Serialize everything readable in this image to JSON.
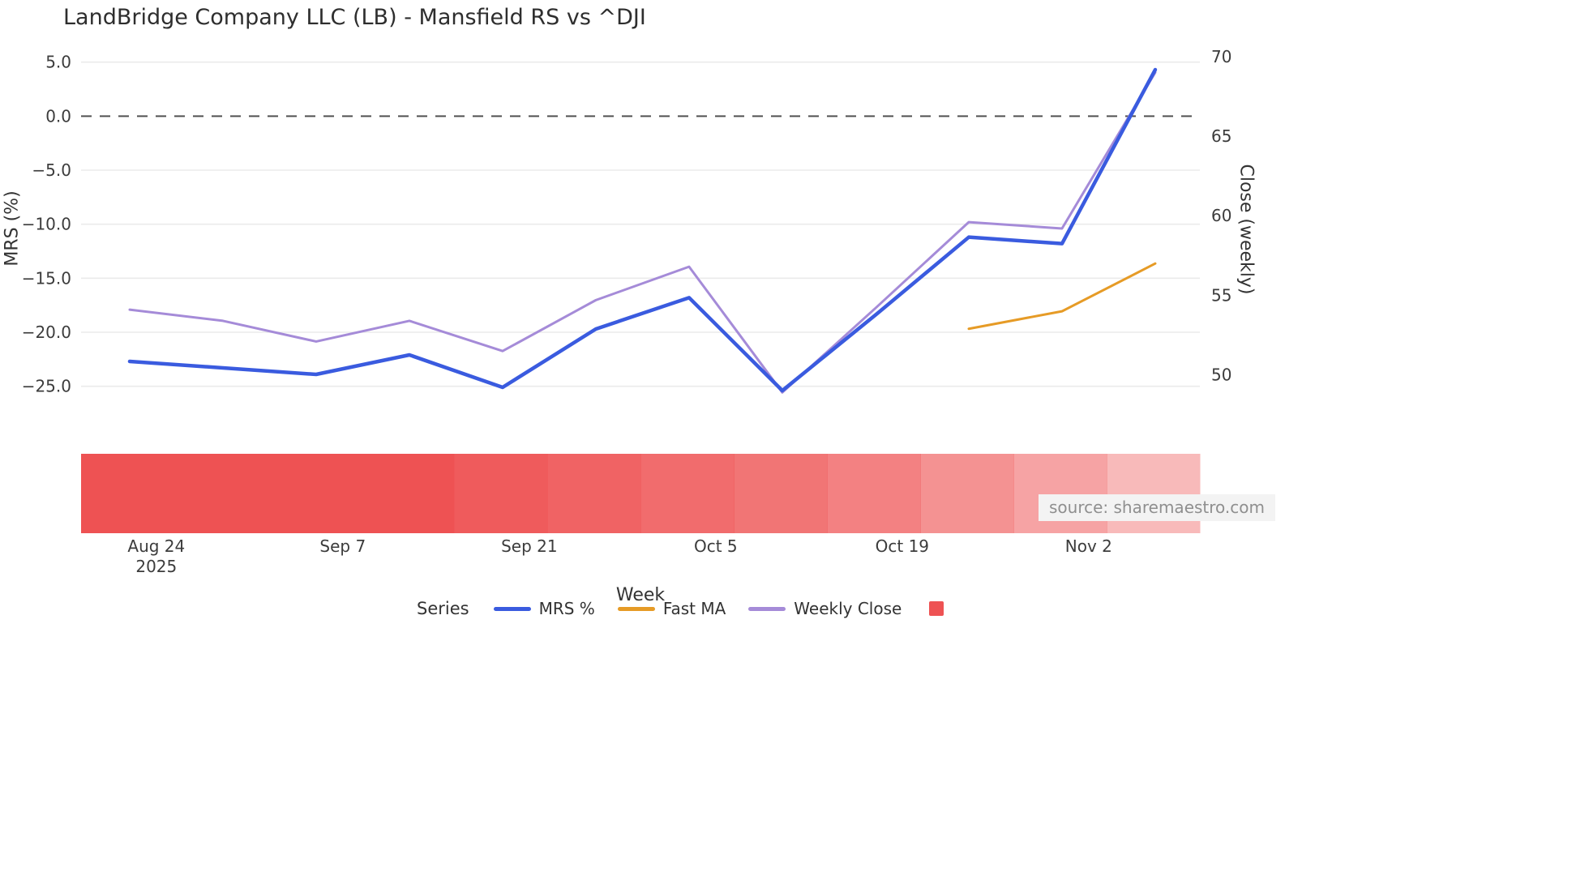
{
  "source_note": "source: sharemaestro.com",
  "legend": {
    "title": "Series",
    "items": [
      {
        "label": "MRS %",
        "color": "#3a5bdf",
        "swatch": "line"
      },
      {
        "label": "Fast MA",
        "color": "#e69b26",
        "swatch": "line"
      },
      {
        "label": "Weekly Close",
        "color": "#a58bd8",
        "swatch": "line"
      },
      {
        "label": "",
        "color": "#ee5253",
        "swatch": "square"
      }
    ]
  },
  "chart_data": {
    "type": "line",
    "title": "LandBridge Company LLC (LB) - Mansfield RS vs ^DJI",
    "xlabel": "Week",
    "ylabel_left": "MRS (%)",
    "ylabel_right": "Close (weekly)",
    "x_unit": "day offset, weekly points starting Aug 22 2025",
    "xlim": [
      -3.65,
      80.35
    ],
    "ylim_left": [
      -26.9,
      6.4
    ],
    "ylim_right": [
      48.0,
      70.6
    ],
    "grid": "horizontal at left-axis ticks, light gray",
    "zero_reference_line": {
      "value": 0,
      "axis": "left",
      "style": "dashed",
      "color": "#515151"
    },
    "left_ticks": [
      {
        "value": 5,
        "label": "5.0"
      },
      {
        "value": 0,
        "label": "0.0"
      },
      {
        "value": -5,
        "label": "−5.0"
      },
      {
        "value": -10,
        "label": "−10.0"
      },
      {
        "value": -15,
        "label": "−15.0"
      },
      {
        "value": -20,
        "label": "−20.0"
      },
      {
        "value": -25,
        "label": "−25.0"
      }
    ],
    "right_ticks": [
      {
        "value": 70,
        "label": "70"
      },
      {
        "value": 65,
        "label": "65"
      },
      {
        "value": 60,
        "label": "60"
      },
      {
        "value": 55,
        "label": "55"
      },
      {
        "value": 50,
        "label": "50"
      }
    ],
    "x_ticks": [
      {
        "x": 2,
        "label": "Aug 24",
        "sublabel": "2025"
      },
      {
        "x": 16,
        "label": "Sep 7"
      },
      {
        "x": 30,
        "label": "Sep 21"
      },
      {
        "x": 44,
        "label": "Oct 5"
      },
      {
        "x": 58,
        "label": "Oct 19"
      },
      {
        "x": 72,
        "label": "Nov 2"
      }
    ],
    "series": [
      {
        "name": "Weekly Close",
        "axis": "right",
        "color": "#a58bd8",
        "width": 3,
        "x": [
          0,
          7,
          14,
          21,
          28,
          35,
          42,
          49,
          56,
          63,
          70,
          77
        ],
        "values": [
          54.1,
          53.4,
          52.1,
          53.4,
          51.5,
          54.7,
          56.8,
          48.9,
          54.2,
          59.6,
          59.2,
          69.0
        ]
      },
      {
        "name": "Fast MA",
        "axis": "right",
        "color": "#e69b26",
        "width": 3,
        "x": [
          63,
          70,
          77
        ],
        "values": [
          52.9,
          54.0,
          57.0
        ]
      },
      {
        "name": "MRS %",
        "axis": "left",
        "color": "#3a5bdf",
        "width": 4.5,
        "x": [
          0,
          7,
          14,
          21,
          28,
          35,
          42,
          49,
          56,
          63,
          70,
          77
        ],
        "values": [
          -22.7,
          -23.3,
          -23.9,
          -22.1,
          -25.1,
          -19.7,
          -16.8,
          -25.4,
          -18.4,
          -11.2,
          -11.8,
          4.3
        ]
      }
    ],
    "heat_strip": {
      "color": "#ee5253",
      "cells": 12,
      "opacities": [
        1,
        1,
        1,
        1,
        0.95,
        0.9,
        0.85,
        0.8,
        0.73,
        0.63,
        0.53,
        0.4
      ]
    }
  }
}
